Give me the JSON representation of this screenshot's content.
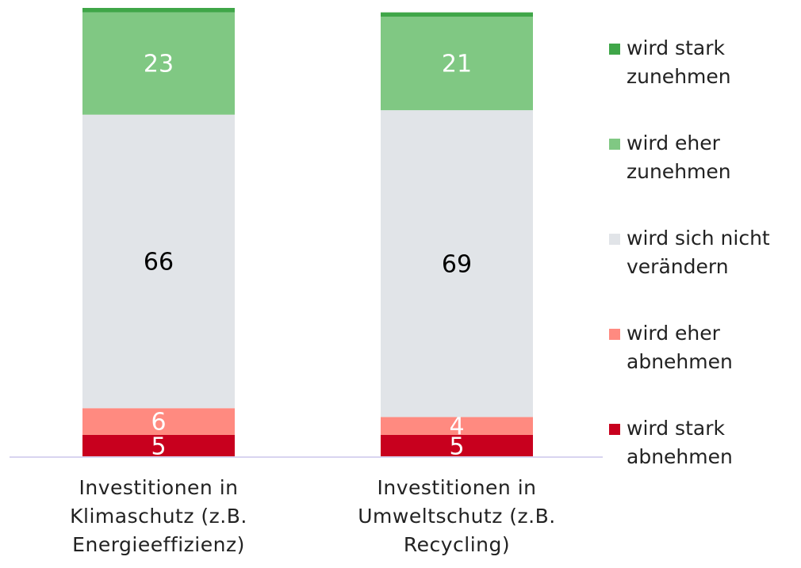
{
  "chart_data": {
    "type": "stacked_bar",
    "categories": [
      "Investitionen in Klimaschutz (z.B. Energieeffizienz)",
      "Investitionen in Umweltschutz (z.B. Recycling)"
    ],
    "series": [
      {
        "name": "wird stark abnehmen",
        "color": "#c8001e",
        "values": [
          5,
          5
        ],
        "label_color": "#ffffff"
      },
      {
        "name": "wird eher abnehmen",
        "color": "#ff8a80",
        "values": [
          6,
          4
        ],
        "label_color": "#ffffff"
      },
      {
        "name": "wird sich nicht verändern",
        "color": "#e1e4e8",
        "values": [
          66,
          69
        ],
        "label_color": "#000000"
      },
      {
        "name": "wird eher zunehmen",
        "color": "#80c883",
        "values": [
          23,
          21
        ],
        "label_color": "#ffffff"
      },
      {
        "name": "wird stark zunehmen",
        "color": "#3fa648",
        "values": [
          1,
          1
        ]
      }
    ],
    "ylim": [
      0,
      101
    ]
  }
}
